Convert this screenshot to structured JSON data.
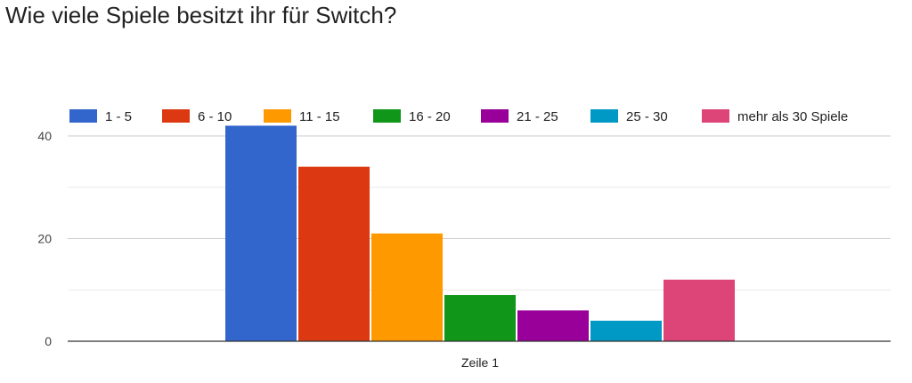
{
  "chart_data": {
    "type": "bar",
    "title": "Wie viele Spiele besitzt ihr für Switch?",
    "categories": [
      "Zeile 1"
    ],
    "series": [
      {
        "name": "1 - 5",
        "color": "#3366cc",
        "values": [
          42
        ]
      },
      {
        "name": "6 - 10",
        "color": "#dc3912",
        "values": [
          34
        ]
      },
      {
        "name": "11 - 15",
        "color": "#ff9900",
        "values": [
          21
        ]
      },
      {
        "name": "16 - 20",
        "color": "#109618",
        "values": [
          9
        ]
      },
      {
        "name": "21 - 25",
        "color": "#990099",
        "values": [
          6
        ]
      },
      {
        "name": "25 - 30",
        "color": "#0099c6",
        "values": [
          4
        ]
      },
      {
        "name": "mehr als 30 Spiele",
        "color": "#dd4477",
        "values": [
          12
        ]
      }
    ],
    "yticks": [
      0,
      20,
      40
    ],
    "minor_gridlines": [
      10,
      30
    ],
    "ylim": [
      0,
      50
    ],
    "xlabel": "",
    "ylabel": "",
    "legend": "top",
    "grid": true
  }
}
